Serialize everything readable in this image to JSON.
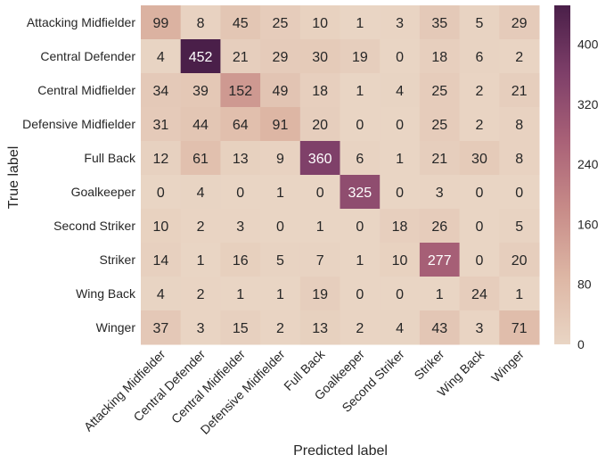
{
  "chart_data": {
    "type": "heatmap",
    "title": "",
    "xlabel": "Predicted label",
    "ylabel": "True label",
    "rows": [
      "Attacking Midfielder",
      "Central Defender",
      "Central Midfielder",
      "Defensive Midfielder",
      "Full Back",
      "Goalkeeper",
      "Second Striker",
      "Striker",
      "Wing Back",
      "Winger"
    ],
    "columns": [
      "Attacking Midfielder",
      "Central Defender",
      "Central Midfielder",
      "Defensive Midfielder",
      "Full Back",
      "Goalkeeper",
      "Second Striker",
      "Striker",
      "Wing Back",
      "Winger"
    ],
    "values": [
      [
        99,
        8,
        45,
        25,
        10,
        1,
        3,
        35,
        5,
        29
      ],
      [
        4,
        452,
        21,
        29,
        30,
        19,
        0,
        18,
        6,
        2
      ],
      [
        34,
        39,
        152,
        49,
        18,
        1,
        4,
        25,
        2,
        21
      ],
      [
        31,
        44,
        64,
        91,
        20,
        0,
        0,
        25,
        2,
        8
      ],
      [
        12,
        61,
        13,
        9,
        360,
        6,
        1,
        21,
        30,
        8
      ],
      [
        0,
        4,
        0,
        1,
        0,
        325,
        0,
        3,
        0,
        0
      ],
      [
        10,
        2,
        3,
        0,
        1,
        0,
        18,
        26,
        0,
        5
      ],
      [
        14,
        1,
        16,
        5,
        7,
        1,
        10,
        277,
        0,
        20
      ],
      [
        4,
        2,
        1,
        1,
        19,
        0,
        0,
        1,
        24,
        1
      ],
      [
        37,
        3,
        15,
        2,
        13,
        2,
        4,
        43,
        3,
        71
      ]
    ],
    "colorbar": {
      "range": [
        0,
        452
      ],
      "ticks": [
        0,
        80,
        160,
        240,
        320,
        400
      ],
      "colors": [
        "#e9d5c4",
        "#ddb6a4",
        "#c78b88",
        "#a96177",
        "#7e3f69",
        "#4a1f49"
      ]
    },
    "grid": false
  }
}
